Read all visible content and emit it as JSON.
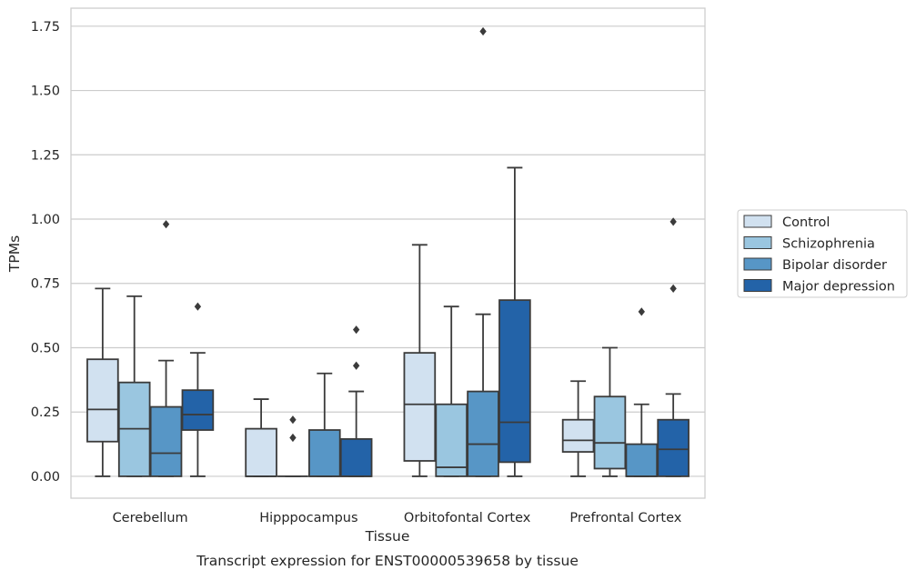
{
  "chart_data": {
    "type": "box",
    "xlabel": "Tissue",
    "ylabel": "TPMs",
    "caption": "Transcript expression for ENST00000539658 by tissue",
    "categories": [
      "Cerebellum",
      "Hipppocampus",
      "Orbitofontal Cortex",
      "Prefrontal Cortex"
    ],
    "ylim": [
      -0.085,
      1.82
    ],
    "yticks": [
      0.0,
      0.25,
      0.5,
      0.75,
      1.0,
      1.25,
      1.5,
      1.75
    ],
    "ytick_labels": [
      "0.00",
      "0.25",
      "0.50",
      "0.75",
      "1.00",
      "1.25",
      "1.50",
      "1.75"
    ],
    "grid": "horizontal",
    "legend_position": "right",
    "colors": {
      "Control": "#d1e1f0",
      "Schizophrenia": "#9ac6e0",
      "Bipolar disorder": "#5796c6",
      "Major depression": "#2363a8",
      "edge": "#3b3b3b",
      "grid": "#cccccc"
    },
    "series": [
      {
        "name": "Control",
        "boxes": [
          {
            "whislo": 0.0,
            "q1": 0.135,
            "med": 0.26,
            "q3": 0.455,
            "whishi": 0.73,
            "fliers": []
          },
          {
            "whislo": 0.0,
            "q1": 0.0,
            "med": 0.0,
            "q3": 0.185,
            "whishi": 0.3,
            "fliers": []
          },
          {
            "whislo": 0.0,
            "q1": 0.06,
            "med": 0.28,
            "q3": 0.48,
            "whishi": 0.9,
            "fliers": []
          },
          {
            "whislo": 0.0,
            "q1": 0.095,
            "med": 0.14,
            "q3": 0.22,
            "whishi": 0.37,
            "fliers": []
          }
        ]
      },
      {
        "name": "Schizophrenia",
        "boxes": [
          {
            "whislo": 0.0,
            "q1": 0.0,
            "med": 0.185,
            "q3": 0.365,
            "whishi": 0.7,
            "fliers": []
          },
          {
            "whislo": 0.0,
            "q1": 0.0,
            "med": 0.0,
            "q3": 0.0,
            "whishi": 0.0,
            "fliers": [
              0.15,
              0.22
            ]
          },
          {
            "whislo": 0.0,
            "q1": 0.0,
            "med": 0.035,
            "q3": 0.28,
            "whishi": 0.66,
            "fliers": []
          },
          {
            "whislo": 0.0,
            "q1": 0.03,
            "med": 0.13,
            "q3": 0.31,
            "whishi": 0.5,
            "fliers": []
          }
        ]
      },
      {
        "name": "Bipolar disorder",
        "boxes": [
          {
            "whislo": 0.0,
            "q1": 0.0,
            "med": 0.09,
            "q3": 0.27,
            "whishi": 0.45,
            "fliers": [
              0.98
            ]
          },
          {
            "whislo": 0.0,
            "q1": 0.0,
            "med": 0.0,
            "q3": 0.18,
            "whishi": 0.4,
            "fliers": []
          },
          {
            "whislo": 0.0,
            "q1": 0.0,
            "med": 0.125,
            "q3": 0.33,
            "whishi": 0.63,
            "fliers": [
              1.73
            ]
          },
          {
            "whislo": 0.0,
            "q1": 0.0,
            "med": 0.0,
            "q3": 0.125,
            "whishi": 0.28,
            "fliers": [
              0.64
            ]
          }
        ]
      },
      {
        "name": "Major depression",
        "boxes": [
          {
            "whislo": 0.0,
            "q1": 0.18,
            "med": 0.24,
            "q3": 0.335,
            "whishi": 0.48,
            "fliers": [
              0.66
            ]
          },
          {
            "whislo": 0.0,
            "q1": 0.0,
            "med": 0.0,
            "q3": 0.145,
            "whishi": 0.33,
            "fliers": [
              0.43,
              0.57
            ]
          },
          {
            "whislo": 0.0,
            "q1": 0.055,
            "med": 0.21,
            "q3": 0.685,
            "whishi": 1.2,
            "fliers": []
          },
          {
            "whislo": 0.0,
            "q1": 0.0,
            "med": 0.105,
            "q3": 0.22,
            "whishi": 0.32,
            "fliers": [
              0.73,
              0.99
            ]
          }
        ]
      }
    ]
  }
}
